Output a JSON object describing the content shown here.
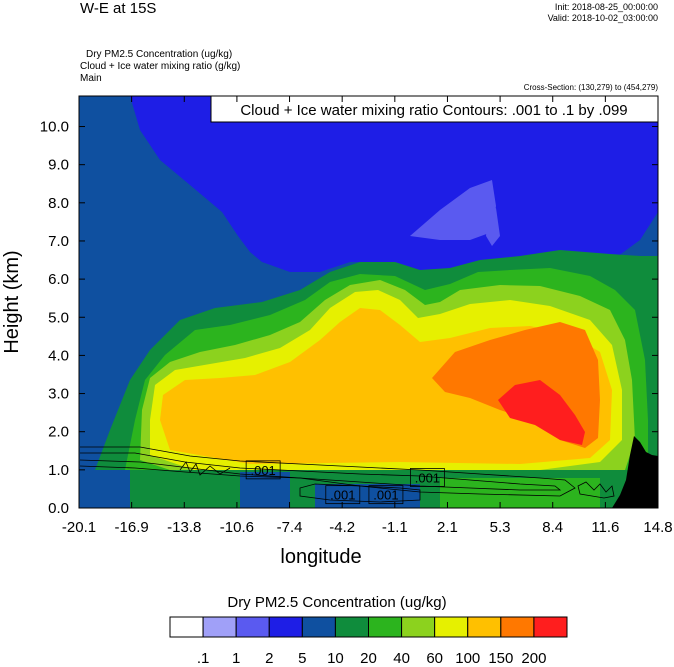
{
  "header": {
    "title": "W-E at 15S",
    "init": "Init: 2018-08-25_00:00:00",
    "valid": "Valid: 2018-10-02_03:00:00",
    "field_1": "Dry PM2.5 Concentration   (ug/kg)",
    "field_2": "Cloud + Ice water mixing ratio   (g/kg)",
    "field_3": "Main",
    "cross_section": "Cross-Section: (130,279) to (454,279)"
  },
  "chart_data": {
    "type": "heatmap",
    "xlabel": "longitude",
    "ylabel": "Height (km)",
    "xlim": [
      -20.1,
      14.8
    ],
    "ylim": [
      0.0,
      10.8
    ],
    "x_ticks": [
      "-20.1",
      "-16.9",
      "-13.8",
      "-10.6",
      "-7.4",
      "-4.2",
      "-1.1",
      "2.1",
      "5.3",
      "8.4",
      "11.6",
      "14.8"
    ],
    "y_ticks": [
      "0.0",
      "1.0",
      "2.0",
      "3.0",
      "4.0",
      "5.0",
      "6.0",
      "7.0",
      "8.0",
      "9.0",
      "10.0"
    ],
    "contour_title": "Cloud + Ice water mixing ratio Contours: .001 to .1 by .099",
    "contour_labels": [
      {
        "text": ".001",
        "lon": -9.0,
        "h": 1.0
      },
      {
        "text": ".001",
        "lon": -4.2,
        "h": 0.35
      },
      {
        "text": ".001",
        "lon": -1.6,
        "h": 0.35
      },
      {
        "text": ".001",
        "lon": 0.9,
        "h": 0.8
      }
    ],
    "colorbar": {
      "title": "Dry PM2.5 Concentration  (ug/kg)",
      "levels": [
        ".1",
        "1",
        "2",
        "5",
        "10",
        "20",
        "40",
        "60",
        "100",
        "150",
        "200"
      ],
      "colors": [
        "#ffffff",
        "#a0a0f8",
        "#5a5af0",
        "#1e1ee6",
        "#0f50a0",
        "#0f8c3c",
        "#2cb41e",
        "#8cd21e",
        "#e6f000",
        "#ffc000",
        "#ff7800",
        "#ff1e1e"
      ]
    },
    "terrain_color": "#000000"
  }
}
